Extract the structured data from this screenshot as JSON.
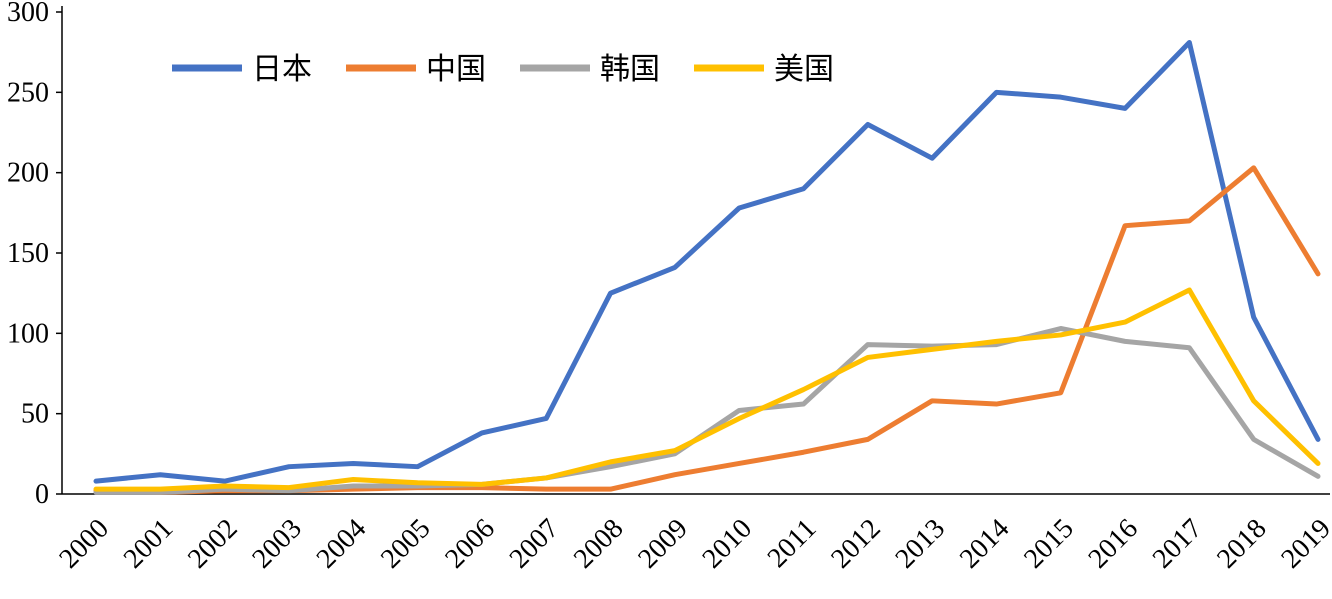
{
  "chart_data": {
    "type": "line",
    "title": "",
    "xlabel": "",
    "ylabel": "",
    "categories": [
      "2000",
      "2001",
      "2002",
      "2003",
      "2004",
      "2005",
      "2006",
      "2007",
      "2008",
      "2009",
      "2010",
      "2011",
      "2012",
      "2013",
      "2014",
      "2015",
      "2016",
      "2017",
      "2018",
      "2019"
    ],
    "series": [
      {
        "name": "日本",
        "color": "#4472C4",
        "values": [
          8,
          12,
          8,
          17,
          19,
          17,
          38,
          47,
          125,
          141,
          178,
          190,
          230,
          209,
          250,
          247,
          240,
          281,
          110,
          34
        ]
      },
      {
        "name": "中国",
        "color": "#ED7D31",
        "values": [
          2,
          1,
          2,
          2,
          3,
          4,
          4,
          3,
          3,
          12,
          19,
          26,
          34,
          58,
          56,
          63,
          167,
          170,
          203,
          137
        ]
      },
      {
        "name": "韩国",
        "color": "#A5A5A5",
        "values": [
          1,
          1,
          3,
          2,
          5,
          5,
          6,
          10,
          17,
          25,
          52,
          56,
          93,
          92,
          93,
          103,
          95,
          91,
          34,
          11
        ]
      },
      {
        "name": "美国",
        "color": "#FFC000",
        "values": [
          3,
          3,
          5,
          4,
          9,
          7,
          6,
          10,
          20,
          27,
          47,
          65,
          85,
          90,
          95,
          99,
          107,
          127,
          58,
          19
        ]
      }
    ],
    "ylim": [
      0,
      300
    ],
    "yticks": [
      0,
      50,
      100,
      150,
      200,
      250,
      300
    ],
    "grid": false,
    "legend_position": "top-inside",
    "axis_color": "#000000"
  }
}
